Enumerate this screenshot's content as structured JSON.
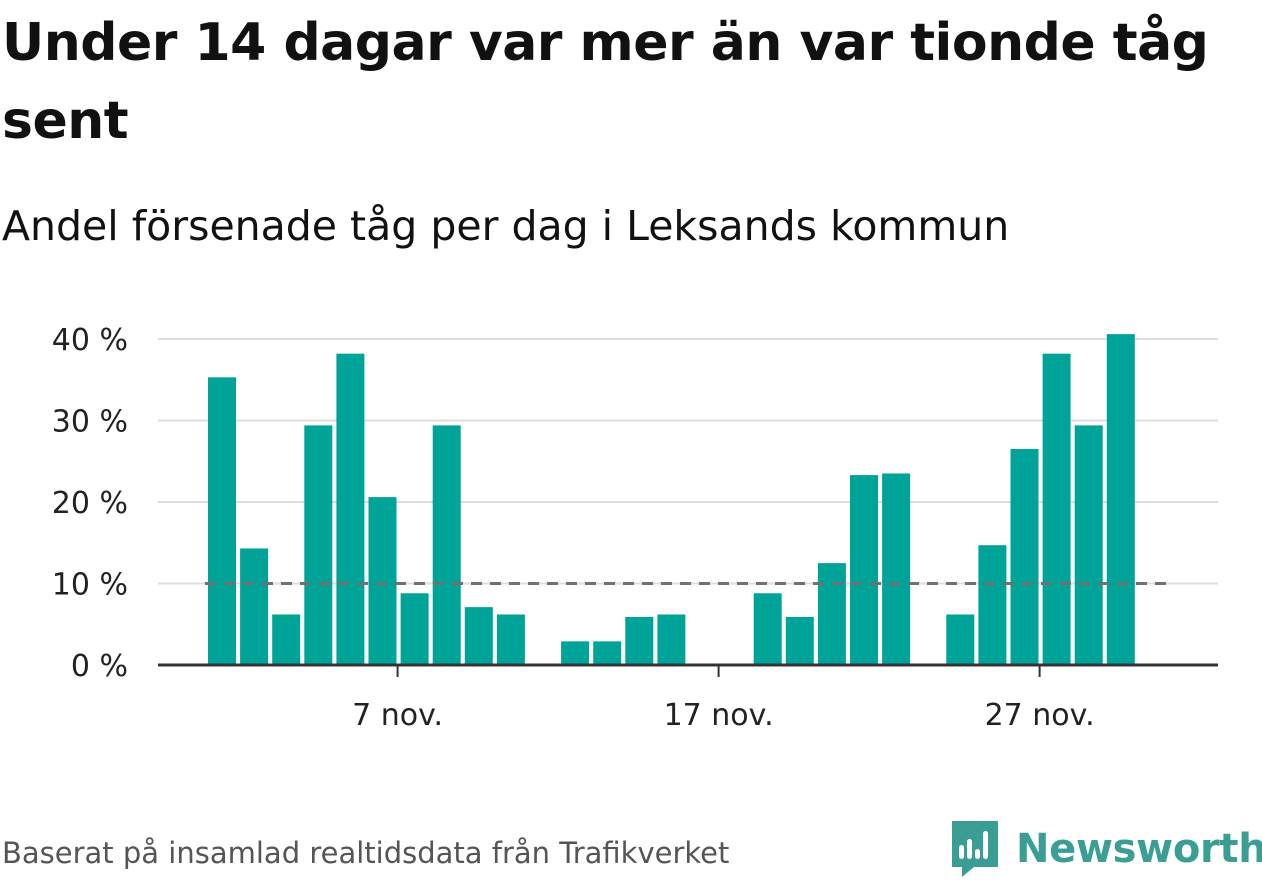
{
  "title": "Under 14 dagar var mer än var tionde tåg sent",
  "subtitle": "Andel försenade tåg per dag i Leksands kommun",
  "footer": "Baserat på insamlad realtidsdata från Trafikverket",
  "brand": {
    "name": "Newsworthy",
    "icon": "newsworthy-logo-icon",
    "color": "#3a9e95"
  },
  "colors": {
    "bar": "#00a398",
    "reference_line": "#707070",
    "grid": "#dddddd",
    "axis": "#333333"
  },
  "chart_data": {
    "type": "bar",
    "x": [
      "1 nov.",
      "2 nov.",
      "3 nov.",
      "4 nov.",
      "5 nov.",
      "6 nov.",
      "7 nov.",
      "8 nov.",
      "9 nov.",
      "10 nov.",
      "11 nov.",
      "12 nov.",
      "13 nov.",
      "14 nov.",
      "15 nov.",
      "16 nov.",
      "17 nov.",
      "18 nov.",
      "19 nov.",
      "20 nov.",
      "21 nov.",
      "22 nov.",
      "23 nov.",
      "24 nov.",
      "25 nov.",
      "26 nov.",
      "27 nov.",
      "28 nov.",
      "29 nov.",
      "30 nov."
    ],
    "values": [
      35.3,
      14.3,
      6.2,
      29.4,
      38.2,
      20.6,
      8.8,
      29.4,
      7.1,
      6.2,
      null,
      2.9,
      2.9,
      5.9,
      6.2,
      null,
      null,
      8.8,
      5.9,
      12.5,
      23.3,
      23.5,
      null,
      6.2,
      14.7,
      26.5,
      38.2,
      29.4,
      40.6,
      null
    ],
    "y_ticks": [
      0,
      10,
      20,
      30,
      40
    ],
    "y_tick_labels": [
      "0 %",
      "10 %",
      "20 %",
      "30 %",
      "40 %"
    ],
    "x_ticks": [
      "7 nov.",
      "17 nov.",
      "27 nov."
    ],
    "reference_line": {
      "value": 10,
      "style": "dashed"
    },
    "ylim": [
      0,
      42
    ],
    "grid": true,
    "xlabel": "",
    "ylabel": ""
  }
}
